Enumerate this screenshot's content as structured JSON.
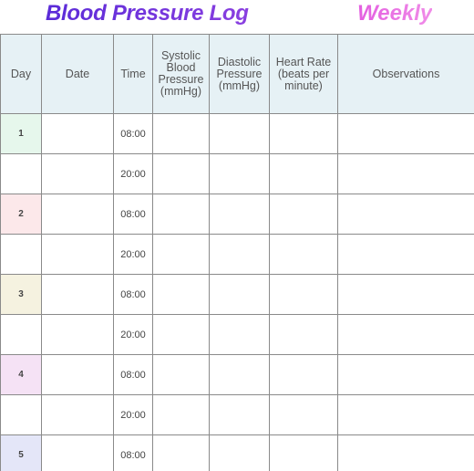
{
  "header": {
    "title": "Blood Pressure Log",
    "subtitle": "Weekly"
  },
  "table": {
    "columns": [
      "Day",
      "Date",
      "Time",
      "Systolic Blood Pressure (mmHg)",
      "Diastolic Pressure (mmHg)",
      "Heart Rate (beats per minute)",
      "Observations"
    ],
    "rows": [
      {
        "day": "1",
        "time": "08:00"
      },
      {
        "time": "20:00"
      },
      {
        "day": "2",
        "time": "08:00"
      },
      {
        "time": "20:00"
      },
      {
        "day": "3",
        "time": "08:00"
      },
      {
        "time": "20:00"
      },
      {
        "day": "4",
        "time": "08:00"
      },
      {
        "time": "20:00"
      },
      {
        "day": "5",
        "time": "08:00"
      }
    ]
  }
}
